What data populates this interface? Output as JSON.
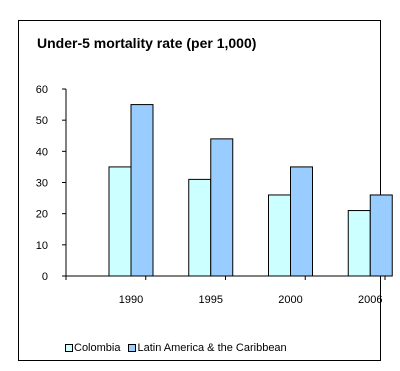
{
  "chart_data": {
    "type": "bar",
    "title": "Under-5 mortality rate (per 1,000)",
    "xlabel": "",
    "ylabel": "",
    "categories": [
      "1990",
      "1995",
      "2000",
      "2006"
    ],
    "series": [
      {
        "name": "Colombia",
        "values": [
          35,
          31,
          26,
          21
        ],
        "color": "#ccffff"
      },
      {
        "name": "Latin America & the Caribbean",
        "values": [
          55,
          44,
          35,
          26
        ],
        "color": "#99ccff"
      }
    ],
    "ylim": [
      0,
      60
    ],
    "yticks": [
      0,
      10,
      20,
      30,
      40,
      50,
      60
    ],
    "grid": false,
    "legend_position": "bottom"
  }
}
